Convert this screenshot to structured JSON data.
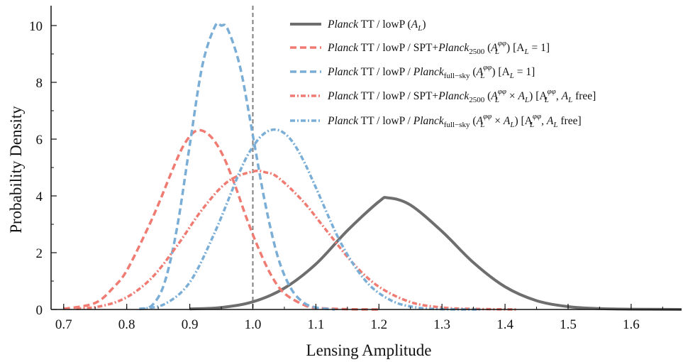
{
  "chart_data": {
    "type": "line",
    "xlabel": "Lensing Amplitude",
    "ylabel": "Probability Density",
    "xlim": [
      0.68,
      1.68
    ],
    "ylim": [
      0,
      10.7
    ],
    "xticks": [
      "0.7",
      "0.8",
      "0.9",
      "1.0",
      "1.1",
      "1.2",
      "1.3",
      "1.4",
      "1.5",
      "1.6"
    ],
    "yticks": [
      "0",
      "2",
      "4",
      "6",
      "8",
      "10"
    ],
    "grid": false,
    "legend_position": "top-right",
    "reference_line": {
      "x": 1.0,
      "style": "dashed",
      "color": "#808080"
    },
    "series": [
      {
        "name": "Planck TT / lowP (A_L)",
        "color": "#6e6e6e",
        "style": "solid",
        "x": [
          0.9,
          0.95,
          1.0,
          1.05,
          1.1,
          1.15,
          1.2,
          1.215,
          1.25,
          1.3,
          1.35,
          1.4,
          1.45,
          1.5,
          1.55,
          1.6,
          1.68
        ],
        "y": [
          0.02,
          0.07,
          0.27,
          0.75,
          1.6,
          2.78,
          3.8,
          3.93,
          3.68,
          2.75,
          1.65,
          0.8,
          0.31,
          0.1,
          0.03,
          0.01,
          0.0
        ]
      },
      {
        "name": "Planck TT / lowP / SPT+Planck_2500 (A_L^φφ) [A_L = 1]",
        "color": "#f07b72",
        "style": "dashed",
        "x": [
          0.7,
          0.75,
          0.78,
          0.8,
          0.83,
          0.85,
          0.87,
          0.89,
          0.91,
          0.93,
          0.95,
          0.97,
          0.99,
          1.01,
          1.03,
          1.05,
          1.08,
          1.1,
          1.15,
          1.2
        ],
        "y": [
          0.02,
          0.23,
          0.8,
          1.37,
          2.7,
          3.69,
          4.78,
          5.77,
          6.29,
          6.16,
          5.54,
          4.48,
          3.22,
          2.1,
          1.17,
          0.57,
          0.17,
          0.06,
          0.01,
          0.0
        ]
      },
      {
        "name": "Planck TT / lowP / Planck_full-sky (A_L^φφ) [A_L = 1]",
        "color": "#7aaed6",
        "style": "dashed",
        "x": [
          0.82,
          0.84,
          0.86,
          0.88,
          0.9,
          0.92,
          0.94,
          0.95,
          0.96,
          0.98,
          1.0,
          1.02,
          1.04,
          1.06,
          1.08,
          1.1,
          1.13
        ],
        "y": [
          0.01,
          0.14,
          0.94,
          2.9,
          5.8,
          8.6,
          9.97,
          10.0,
          9.88,
          8.52,
          6.13,
          3.69,
          1.83,
          0.76,
          0.25,
          0.07,
          0.0
        ]
      },
      {
        "name": "Planck TT / lowP / SPT+Planck_2500 (A_L^φφ × A_L) [A_L^φφ, A_L free]",
        "color": "#f07b72",
        "style": "dashdot",
        "x": [
          0.72,
          0.76,
          0.8,
          0.84,
          0.88,
          0.92,
          0.96,
          1.0,
          1.02,
          1.04,
          1.08,
          1.12,
          1.16,
          1.2,
          1.25,
          1.3,
          1.35,
          1.42
        ],
        "y": [
          0.02,
          0.12,
          0.43,
          1.12,
          2.25,
          3.53,
          4.5,
          4.86,
          4.83,
          4.65,
          3.8,
          2.69,
          1.6,
          0.8,
          0.26,
          0.07,
          0.02,
          0.0
        ]
      },
      {
        "name": "Planck TT / lowP / Planck_full-sky (A_L^φφ × A_L) [A_L^φφ, A_L free]",
        "color": "#7aaed6",
        "style": "dashdot",
        "x": [
          0.82,
          0.86,
          0.9,
          0.94,
          0.98,
          1.0,
          1.02,
          1.04,
          1.06,
          1.08,
          1.1,
          1.14,
          1.18,
          1.22,
          1.26,
          1.3,
          1.36
        ],
        "y": [
          0.02,
          0.19,
          0.96,
          2.73,
          4.89,
          5.73,
          6.23,
          6.32,
          5.99,
          5.26,
          4.29,
          2.33,
          0.98,
          0.31,
          0.07,
          0.01,
          0.0
        ]
      }
    ]
  },
  "legend": [
    {
      "label": "Planck TT / lowP (A_L)"
    },
    {
      "label": "Planck TT / lowP / SPT+Planck_2500 (A_L^φφ) [A_L = 1]"
    },
    {
      "label": "Planck TT / lowP / Planck_full-sky (A_L^φφ) [A_L = 1]"
    },
    {
      "label": "Planck TT / lowP / SPT+Planck_2500 (A_L^φφ × A_L) [A_L^φφ, A_L free]"
    },
    {
      "label": "Planck TT / lowP / Planck_full-sky (A_L^φφ × A_L) [A_L^φφ, A_L free]"
    }
  ],
  "legend_parts": {
    "planck": "Planck",
    "ttlowp": "TT / lowP",
    "open": "(",
    "close": ")",
    "AL": "A",
    "L": "L",
    "phiphi": "φφ",
    "sptplus": "/ SPT+",
    "slash": "/",
    "sub2500": "2500",
    "subfull": "full−sky",
    "fixed": "[A",
    "eq1": "= 1]",
    "times": "×",
    "free": "free]",
    "comma": ","
  }
}
